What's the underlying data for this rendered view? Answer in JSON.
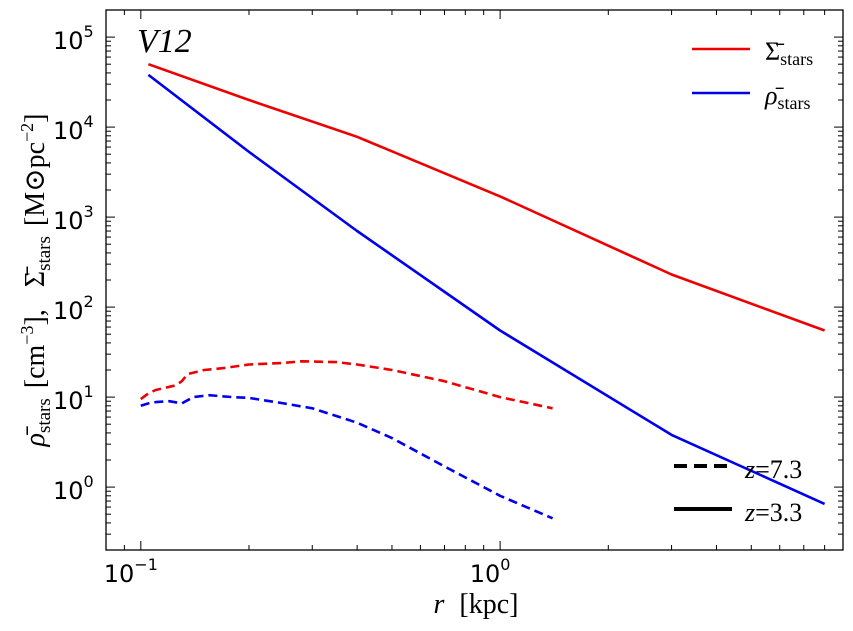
{
  "chart_data": {
    "type": "line",
    "title": "",
    "panel_label": "V12",
    "xlabel": {
      "var": "r",
      "unit": "[kpc]"
    },
    "ylabel": {
      "rho_part": {
        "symbol": "ρ̄",
        "sub": "stars",
        "unit": "[cm",
        "exp": "−3",
        "close": "],",
        "full": "ρ̄_stars [cm^-3],"
      },
      "sigma_part": {
        "symbol": "Σ̄",
        "sub": "stars",
        "unit": "[M⊙pc",
        "exp": "−2",
        "close": "]",
        "full": "Σ̄_stars [M⊙pc^-2]"
      }
    },
    "xscale": "log",
    "yscale": "log",
    "xlim": [
      0.08,
      9.0
    ],
    "ylim": [
      0.2,
      200000
    ],
    "xticks": [
      {
        "value": 0.1,
        "base": "10",
        "exp": "−1"
      },
      {
        "value": 1.0,
        "base": "10",
        "exp": "0"
      }
    ],
    "yticks": [
      {
        "value": 1,
        "base": "10",
        "exp": "0"
      },
      {
        "value": 10,
        "base": "10",
        "exp": "1"
      },
      {
        "value": 100,
        "base": "10",
        "exp": "2"
      },
      {
        "value": 1000,
        "base": "10",
        "exp": "3"
      },
      {
        "value": 10000,
        "base": "10",
        "exp": "4"
      },
      {
        "value": 100000,
        "base": "10",
        "exp": "5"
      }
    ],
    "series": [
      {
        "name": "Σ̄_stars z=3.3",
        "quantity": "sigma",
        "redshift": "3.3",
        "color": "#ee0000",
        "style": "solid",
        "x": [
          0.105,
          0.2,
          0.4,
          1.0,
          3.0,
          8.0
        ],
        "y": [
          50000,
          20000,
          7800,
          1700,
          230,
          55
        ]
      },
      {
        "name": "ρ̄_stars z=3.3",
        "quantity": "rho",
        "redshift": "3.3",
        "color": "#0000ee",
        "style": "solid",
        "x": [
          0.105,
          0.2,
          0.4,
          1.0,
          3.0,
          8.0
        ],
        "y": [
          38000,
          5300,
          700,
          55,
          3.8,
          0.65
        ]
      },
      {
        "name": "Σ̄_stars z=7.3",
        "quantity": "sigma",
        "redshift": "7.3",
        "color": "#ee0000",
        "style": "dashed",
        "x": [
          0.1,
          0.105,
          0.11,
          0.12,
          0.125,
          0.13,
          0.135,
          0.15,
          0.17,
          0.2,
          0.25,
          0.28,
          0.35,
          0.4,
          0.5,
          0.7,
          1.0,
          1.4
        ],
        "y": [
          9.5,
          11,
          12,
          13,
          13.5,
          15,
          18,
          20,
          21,
          23,
          24,
          25,
          24.5,
          23,
          20,
          15,
          10,
          7.5
        ]
      },
      {
        "name": "ρ̄_stars z=7.3",
        "quantity": "rho",
        "redshift": "7.3",
        "color": "#0000ee",
        "style": "dashed",
        "x": [
          0.1,
          0.105,
          0.11,
          0.12,
          0.13,
          0.14,
          0.155,
          0.18,
          0.2,
          0.25,
          0.3,
          0.4,
          0.5,
          0.7,
          1.0,
          1.4
        ],
        "y": [
          8,
          8.5,
          8.8,
          9,
          8.5,
          10,
          10.5,
          10,
          9.8,
          8.5,
          7.5,
          5.2,
          3.5,
          1.7,
          0.8,
          0.45
        ]
      }
    ],
    "legend_quantity": {
      "position": "top-right",
      "entries": [
        {
          "symbol": "Σ̄",
          "sub": "stars",
          "color": "#ee0000"
        },
        {
          "symbol": "ρ̄",
          "sub": "stars",
          "color": "#0000ee"
        }
      ]
    },
    "legend_redshift": {
      "position": "bottom-right",
      "entries": [
        {
          "var": "z",
          "eq": "=",
          "value": "7.3",
          "style": "dashed",
          "color": "#000000"
        },
        {
          "var": "z",
          "eq": "=",
          "value": "3.3",
          "style": "solid",
          "color": "#000000"
        }
      ]
    }
  }
}
